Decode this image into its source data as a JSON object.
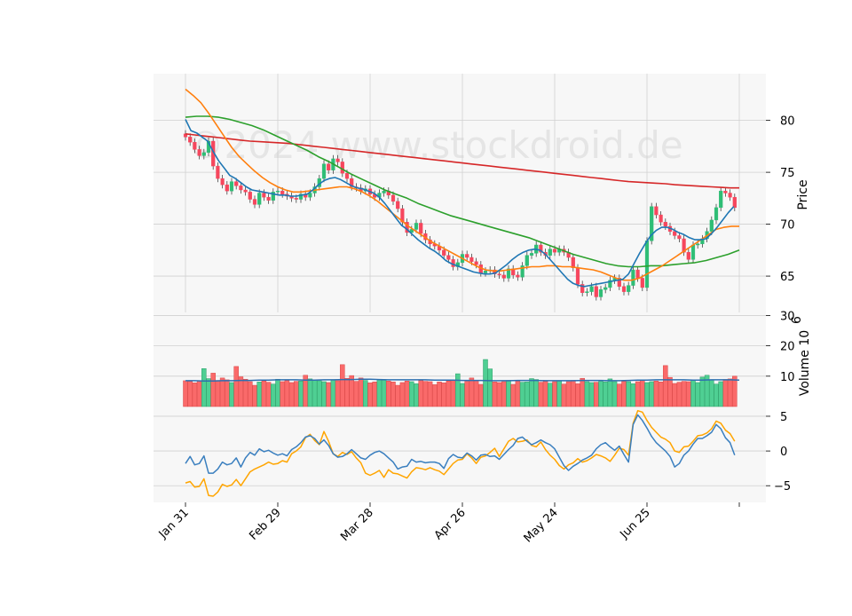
{
  "watermark": "©2024 www.stockdroid.de",
  "colors": {
    "up": "#2ebd75",
    "down": "#f6465d",
    "vol_up": "#4fcf93",
    "vol_down": "#fa6a6a",
    "ma_fast": "#1f77b4",
    "ma_mid": "#ff7f0e",
    "ma_slow": "#2ca02c",
    "ma_long": "#d62728",
    "osc_line1": "#3a7fbf",
    "osc_line2": "#ffa500",
    "vol_ma": "#2e6fb0",
    "panel_bg": "#f7f7f7",
    "grid": "#d0d0d0"
  },
  "chart_data": {
    "type": "candlestick",
    "x_tick_labels": [
      "Jan 31",
      "Feb 29",
      "Mar 28",
      "Apr 26",
      "May 24",
      "Jun 25"
    ],
    "x_tick_index": [
      0,
      20,
      40,
      60,
      80,
      100
    ],
    "n_sessions": 120,
    "panels": {
      "price": {
        "ylabel": "Price",
        "ylim": [
          61.5,
          84.5
        ],
        "yticks": [
          65,
          70,
          75,
          80
        ],
        "close": [
          78.4,
          77.9,
          77.2,
          76.6,
          76.9,
          78.0,
          75.6,
          74.4,
          73.8,
          73.2,
          74.1,
          73.7,
          73.3,
          73.1,
          72.4,
          71.9,
          73.0,
          72.6,
          72.3,
          73.1,
          73.2,
          72.9,
          72.7,
          72.5,
          72.4,
          72.9,
          72.6,
          73.0,
          73.6,
          74.4,
          75.8,
          75.2,
          76.3,
          76.0,
          74.9,
          74.4,
          73.6,
          73.5,
          73.2,
          73.4,
          72.9,
          72.6,
          73.0,
          73.2,
          72.8,
          72.2,
          71.5,
          70.2,
          69.2,
          69.5,
          70.1,
          69.1,
          68.5,
          68.1,
          67.9,
          67.5,
          67.0,
          66.6,
          65.9,
          66.3,
          67.1,
          66.8,
          66.4,
          66.1,
          65.3,
          65.5,
          65.6,
          65.2,
          65.1,
          64.8,
          65.7,
          65.1,
          64.9,
          66.0,
          67.0,
          67.2,
          68.0,
          67.3,
          67.0,
          67.6,
          67.3,
          67.6,
          67.3,
          66.8,
          65.8,
          64.2,
          63.4,
          63.5,
          64.0,
          63.0,
          63.7,
          63.9,
          64.6,
          64.8,
          64.0,
          63.5,
          64.1,
          65.6,
          64.8,
          63.9,
          68.4,
          71.7,
          70.9,
          70.2,
          69.8,
          69.3,
          68.9,
          68.6,
          67.3,
          66.6,
          68.0,
          68.1,
          68.6,
          69.3,
          70.4,
          71.6,
          73.2,
          73.0,
          72.6,
          71.6
        ],
        "ma_fast": [
          80.1,
          79.0,
          78.8,
          78.4,
          78.0,
          77.0,
          76.1,
          75.4,
          74.7,
          74.4,
          74.0,
          73.6,
          73.3,
          73.2,
          73.1,
          73.0,
          72.9,
          72.8,
          72.8,
          72.7,
          72.7,
          72.8,
          72.9,
          73.3,
          73.8,
          74.2,
          74.4,
          74.5,
          74.3,
          74.0,
          73.7,
          73.5,
          73.4,
          73.2,
          73.0,
          72.6,
          72.0,
          71.3,
          70.6,
          69.9,
          69.5,
          69.0,
          68.5,
          68.1,
          67.7,
          67.4,
          67.0,
          66.5,
          66.2,
          66.0,
          65.8,
          65.6,
          65.4,
          65.3,
          65.2,
          65.2,
          65.3,
          65.7,
          66.1,
          66.6,
          67.0,
          67.3,
          67.5,
          67.6,
          67.5,
          67.1,
          66.5,
          65.9,
          65.3,
          64.7,
          64.3,
          64.1,
          64.0,
          64.1,
          64.2,
          64.3,
          64.4,
          64.5,
          64.6,
          64.7,
          65.2,
          66.2,
          67.2,
          68.1,
          68.9,
          69.4,
          69.7,
          69.7,
          69.5,
          69.2,
          69.0,
          68.7,
          68.5,
          68.5,
          68.6,
          69.1,
          69.7,
          70.4,
          71.1,
          71.7
        ],
        "ma_mid": [
          83.0,
          82.4,
          81.7,
          80.7,
          79.6,
          78.5,
          77.4,
          76.5,
          75.8,
          75.1,
          74.5,
          74.0,
          73.6,
          73.3,
          73.1,
          73.1,
          73.2,
          73.3,
          73.4,
          73.5,
          73.6,
          73.6,
          73.4,
          73.1,
          72.7,
          72.2,
          71.6,
          71.0,
          70.4,
          69.8,
          69.3,
          68.8,
          68.3,
          67.9,
          67.5,
          67.1,
          66.7,
          66.3,
          65.9,
          65.6,
          65.5,
          65.5,
          65.6,
          65.7,
          65.8,
          65.9,
          65.9,
          66.0,
          66.0,
          65.9,
          65.9,
          65.8,
          65.7,
          65.6,
          65.4,
          65.1,
          64.8,
          64.6,
          64.6,
          64.8,
          65.2,
          65.6,
          66.0,
          66.5,
          67.0,
          67.5,
          68.0,
          68.5,
          69.0,
          69.5,
          69.7,
          69.8,
          69.8
        ],
        "ma_slow": [
          80.3,
          80.4,
          80.4,
          80.3,
          80.1,
          79.8,
          79.5,
          79.1,
          78.6,
          78.1,
          77.6,
          77.1,
          76.5,
          76.0,
          75.4,
          74.8,
          74.3,
          73.8,
          73.3,
          72.9,
          72.5,
          72.0,
          71.6,
          71.2,
          70.8,
          70.5,
          70.2,
          69.9,
          69.6,
          69.3,
          69.0,
          68.7,
          68.3,
          67.9,
          67.5,
          67.1,
          66.8,
          66.5,
          66.2,
          66.0,
          65.9,
          65.9,
          66.0,
          66.0,
          66.1,
          66.2,
          66.3,
          66.5,
          66.8,
          67.1,
          67.5
        ],
        "ma_long": [
          78.7,
          78.6,
          78.5,
          78.4,
          78.3,
          78.2,
          78.1,
          78.0,
          77.95,
          77.9,
          77.85,
          77.8,
          77.7,
          77.6,
          77.5,
          77.4,
          77.3,
          77.2,
          77.1,
          77.0,
          76.9,
          76.8,
          76.7,
          76.6,
          76.5,
          76.4,
          76.3,
          76.2,
          76.1,
          76.0,
          75.9,
          75.8,
          75.7,
          75.6,
          75.5,
          75.4,
          75.3,
          75.2,
          75.1,
          75.0,
          74.9,
          74.8,
          74.7,
          74.6,
          74.5,
          74.4,
          74.3,
          74.2,
          74.1,
          74.05,
          74.0,
          73.95,
          73.9,
          73.8,
          73.75,
          73.7,
          73.65,
          73.6,
          73.55,
          73.5,
          73.5
        ]
      },
      "volume": {
        "ylabel": "Volume  10",
        "ylabel_exp": "6",
        "ylim": [
          0,
          31
        ],
        "yticks": [
          10,
          20,
          30
        ],
        "values": [
          8.5,
          8.3,
          7.8,
          8.4,
          12.5,
          9.2,
          11.0,
          8.6,
          9.4,
          8.8,
          7.9,
          13.2,
          9.8,
          9.0,
          8.2,
          7.0,
          8.1,
          8.4,
          8.0,
          7.4,
          9.0,
          8.2,
          8.6,
          7.9,
          8.3,
          8.4,
          10.3,
          9.1,
          8.8,
          8.5,
          8.2,
          7.9,
          8.8,
          8.5,
          13.8,
          9.3,
          10.2,
          8.3,
          9.4,
          8.6,
          7.8,
          8.1,
          8.9,
          8.7,
          8.4,
          8.1,
          7.0,
          7.9,
          8.4,
          8.2,
          7.5,
          8.6,
          8.3,
          8.2,
          7.2,
          8.1,
          7.8,
          8.4,
          8.7,
          10.8,
          7.6,
          8.3,
          9.4,
          8.7,
          7.3,
          15.5,
          12.4,
          8.1,
          7.9,
          8.2,
          8.6,
          7.3,
          8.4,
          8.0,
          8.1,
          9.2,
          8.9,
          8.0,
          8.3,
          7.7,
          8.2,
          8.5,
          7.4,
          8.2,
          8.6,
          7.5,
          9.3,
          8.2,
          7.9,
          8.0,
          8.3,
          8.1,
          9.1,
          8.2,
          7.4,
          8.3,
          8.2,
          7.5,
          8.2,
          8.6,
          7.9,
          8.2,
          8.4,
          8.1,
          13.5,
          9.6,
          7.6,
          8.0,
          8.3,
          8.2,
          8.6,
          7.9,
          9.7,
          10.3,
          8.8,
          7.4,
          8.2,
          8.9,
          9.1,
          10.0
        ],
        "ma": [
          8.5,
          8.5,
          8.4,
          8.4,
          8.5,
          8.5,
          8.6,
          8.6,
          8.7,
          8.7,
          8.8,
          8.8,
          8.8,
          8.7,
          8.7,
          8.8,
          8.8,
          8.9,
          8.9,
          9.0,
          9.0,
          8.9,
          8.8,
          8.8,
          8.8,
          8.8,
          8.8,
          8.7,
          8.7,
          8.7,
          8.6,
          8.6,
          8.6,
          8.5,
          8.5,
          8.5,
          8.6,
          8.6,
          8.6,
          8.5,
          8.5,
          8.5,
          8.5,
          8.6,
          8.6,
          8.6,
          8.5,
          8.5,
          8.6,
          8.7,
          8.7,
          8.8,
          8.8,
          8.8,
          8.8,
          8.7,
          8.7,
          8.8,
          8.8,
          8.8,
          8.7
        ]
      },
      "oscillator": {
        "ylabel": "",
        "ylim": [
          -7.4,
          6.4
        ],
        "yticks": [
          -5,
          0,
          5
        ],
        "line1": [
          -1.8,
          -0.8,
          -2.0,
          -1.8,
          -0.7,
          -3.2,
          -3.2,
          -2.6,
          -1.6,
          -2.0,
          -1.8,
          -1.0,
          -2.3,
          -1.0,
          -0.2,
          -0.6,
          0.3,
          -0.1,
          0.1,
          -0.3,
          -0.6,
          -0.4,
          -0.7,
          0.2,
          0.6,
          1.2,
          2.0,
          2.2,
          1.8,
          1.0,
          1.6,
          0.8,
          -0.4,
          -0.9,
          -0.8,
          -0.4,
          0.2,
          -0.4,
          -1.0,
          -1.2,
          -0.6,
          -0.2,
          0.0,
          -0.4,
          -1.0,
          -1.6,
          -2.6,
          -2.3,
          -2.2,
          -1.2,
          -1.6,
          -1.5,
          -1.7,
          -1.6,
          -1.6,
          -1.8,
          -2.5,
          -1.1,
          -0.5,
          -0.9,
          -1.0,
          -0.3,
          -0.7,
          -1.3,
          -0.6,
          -0.5,
          -0.8,
          -0.7,
          -1.2,
          -0.5,
          0.2,
          0.8,
          1.8,
          2.0,
          1.4,
          0.9,
          1.2,
          1.6,
          1.2,
          0.9,
          0.3,
          -0.9,
          -2.1,
          -2.8,
          -2.2,
          -1.8,
          -1.3,
          -1.0,
          -0.6,
          0.3,
          0.9,
          1.2,
          0.6,
          0.1,
          0.7,
          -0.5,
          -1.6,
          3.8,
          5.2,
          4.4,
          3.3,
          2.1,
          1.2,
          0.6,
          0.0,
          -0.8,
          -2.3,
          -1.8,
          -0.6,
          0.0,
          1.0,
          1.8,
          1.8,
          2.2,
          2.7,
          3.8,
          3.2,
          1.9,
          1.2,
          -0.6
        ],
        "line2": [
          -4.6,
          -4.4,
          -5.2,
          -5.1,
          -4.0,
          -6.4,
          -6.5,
          -5.9,
          -4.8,
          -5.1,
          -4.9,
          -4.1,
          -5.0,
          -4.0,
          -3.0,
          -2.6,
          -2.3,
          -2.0,
          -1.6,
          -1.9,
          -1.8,
          -1.4,
          -1.6,
          -0.4,
          0.0,
          0.6,
          1.9,
          2.4,
          1.5,
          0.9,
          2.8,
          1.4,
          -0.4,
          -0.8,
          -0.2,
          -0.5,
          -0.1,
          -1.0,
          -1.7,
          -3.2,
          -3.5,
          -3.2,
          -2.8,
          -3.8,
          -2.7,
          -3.2,
          -3.3,
          -3.6,
          -3.9,
          -3.0,
          -2.4,
          -2.5,
          -2.7,
          -2.4,
          -2.7,
          -2.9,
          -3.4,
          -2.6,
          -1.8,
          -1.3,
          -1.2,
          -0.4,
          -1.0,
          -1.8,
          -0.9,
          -0.7,
          -0.2,
          0.4,
          -0.8,
          0.3,
          1.4,
          1.8,
          1.3,
          1.4,
          1.6,
          0.8,
          0.6,
          1.3,
          0.2,
          -0.6,
          -1.2,
          -2.1,
          -2.6,
          -2.0,
          -1.7,
          -1.1,
          -1.6,
          -1.4,
          -1.0,
          -0.5,
          -0.7,
          -1.0,
          -1.5,
          -0.6,
          0.4,
          0.2,
          -0.6,
          4.0,
          5.8,
          5.6,
          4.4,
          3.4,
          2.7,
          2.0,
          1.7,
          1.2,
          0.0,
          -0.2,
          0.6,
          0.7,
          1.4,
          2.2,
          2.3,
          2.6,
          3.2,
          4.3,
          4.0,
          3.0,
          2.5,
          1.4
        ]
      }
    }
  }
}
